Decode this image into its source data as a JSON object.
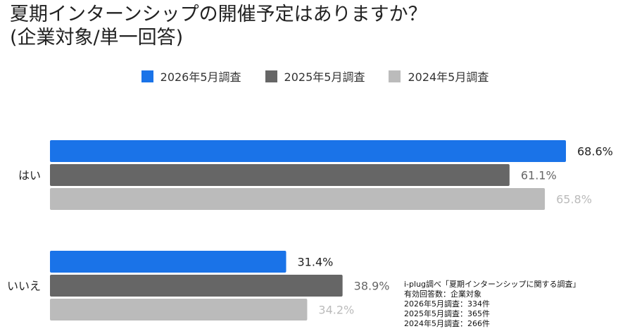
{
  "title": {
    "line1": "夏期インターンシップの開催予定はありますか？",
    "line2": "(企業対象/単一回答)"
  },
  "chart_data": {
    "type": "bar",
    "orientation": "horizontal",
    "categories": [
      "はい",
      "いいえ"
    ],
    "series": [
      {
        "name": "2026年5月調査",
        "color": "#1a73e8",
        "label_color": "#222222",
        "values": [
          68.6,
          31.4
        ]
      },
      {
        "name": "2025年5月調査",
        "color": "#666666",
        "label_color": "#666666",
        "values": [
          61.1,
          38.9
        ]
      },
      {
        "name": "2024年5月調査",
        "color": "#bbbbbb",
        "label_color": "#bbbbbb",
        "values": [
          65.8,
          34.2
        ]
      }
    ],
    "value_labels": [
      [
        "68.6%",
        "31.4%"
      ],
      [
        "61.1%",
        "38.9%"
      ],
      [
        "65.8%",
        "34.2%"
      ]
    ],
    "xlim": [
      0,
      68.6
    ],
    "grid": false,
    "legend_position": "top"
  },
  "note": {
    "lines": [
      "i-plug調べ「夏期インターンシップに関する調査」",
      "有効回答数：企業対象",
      "2026年5月調査：334件",
      "2025年5月調査：365件",
      "2024年5月調査：266件"
    ]
  }
}
